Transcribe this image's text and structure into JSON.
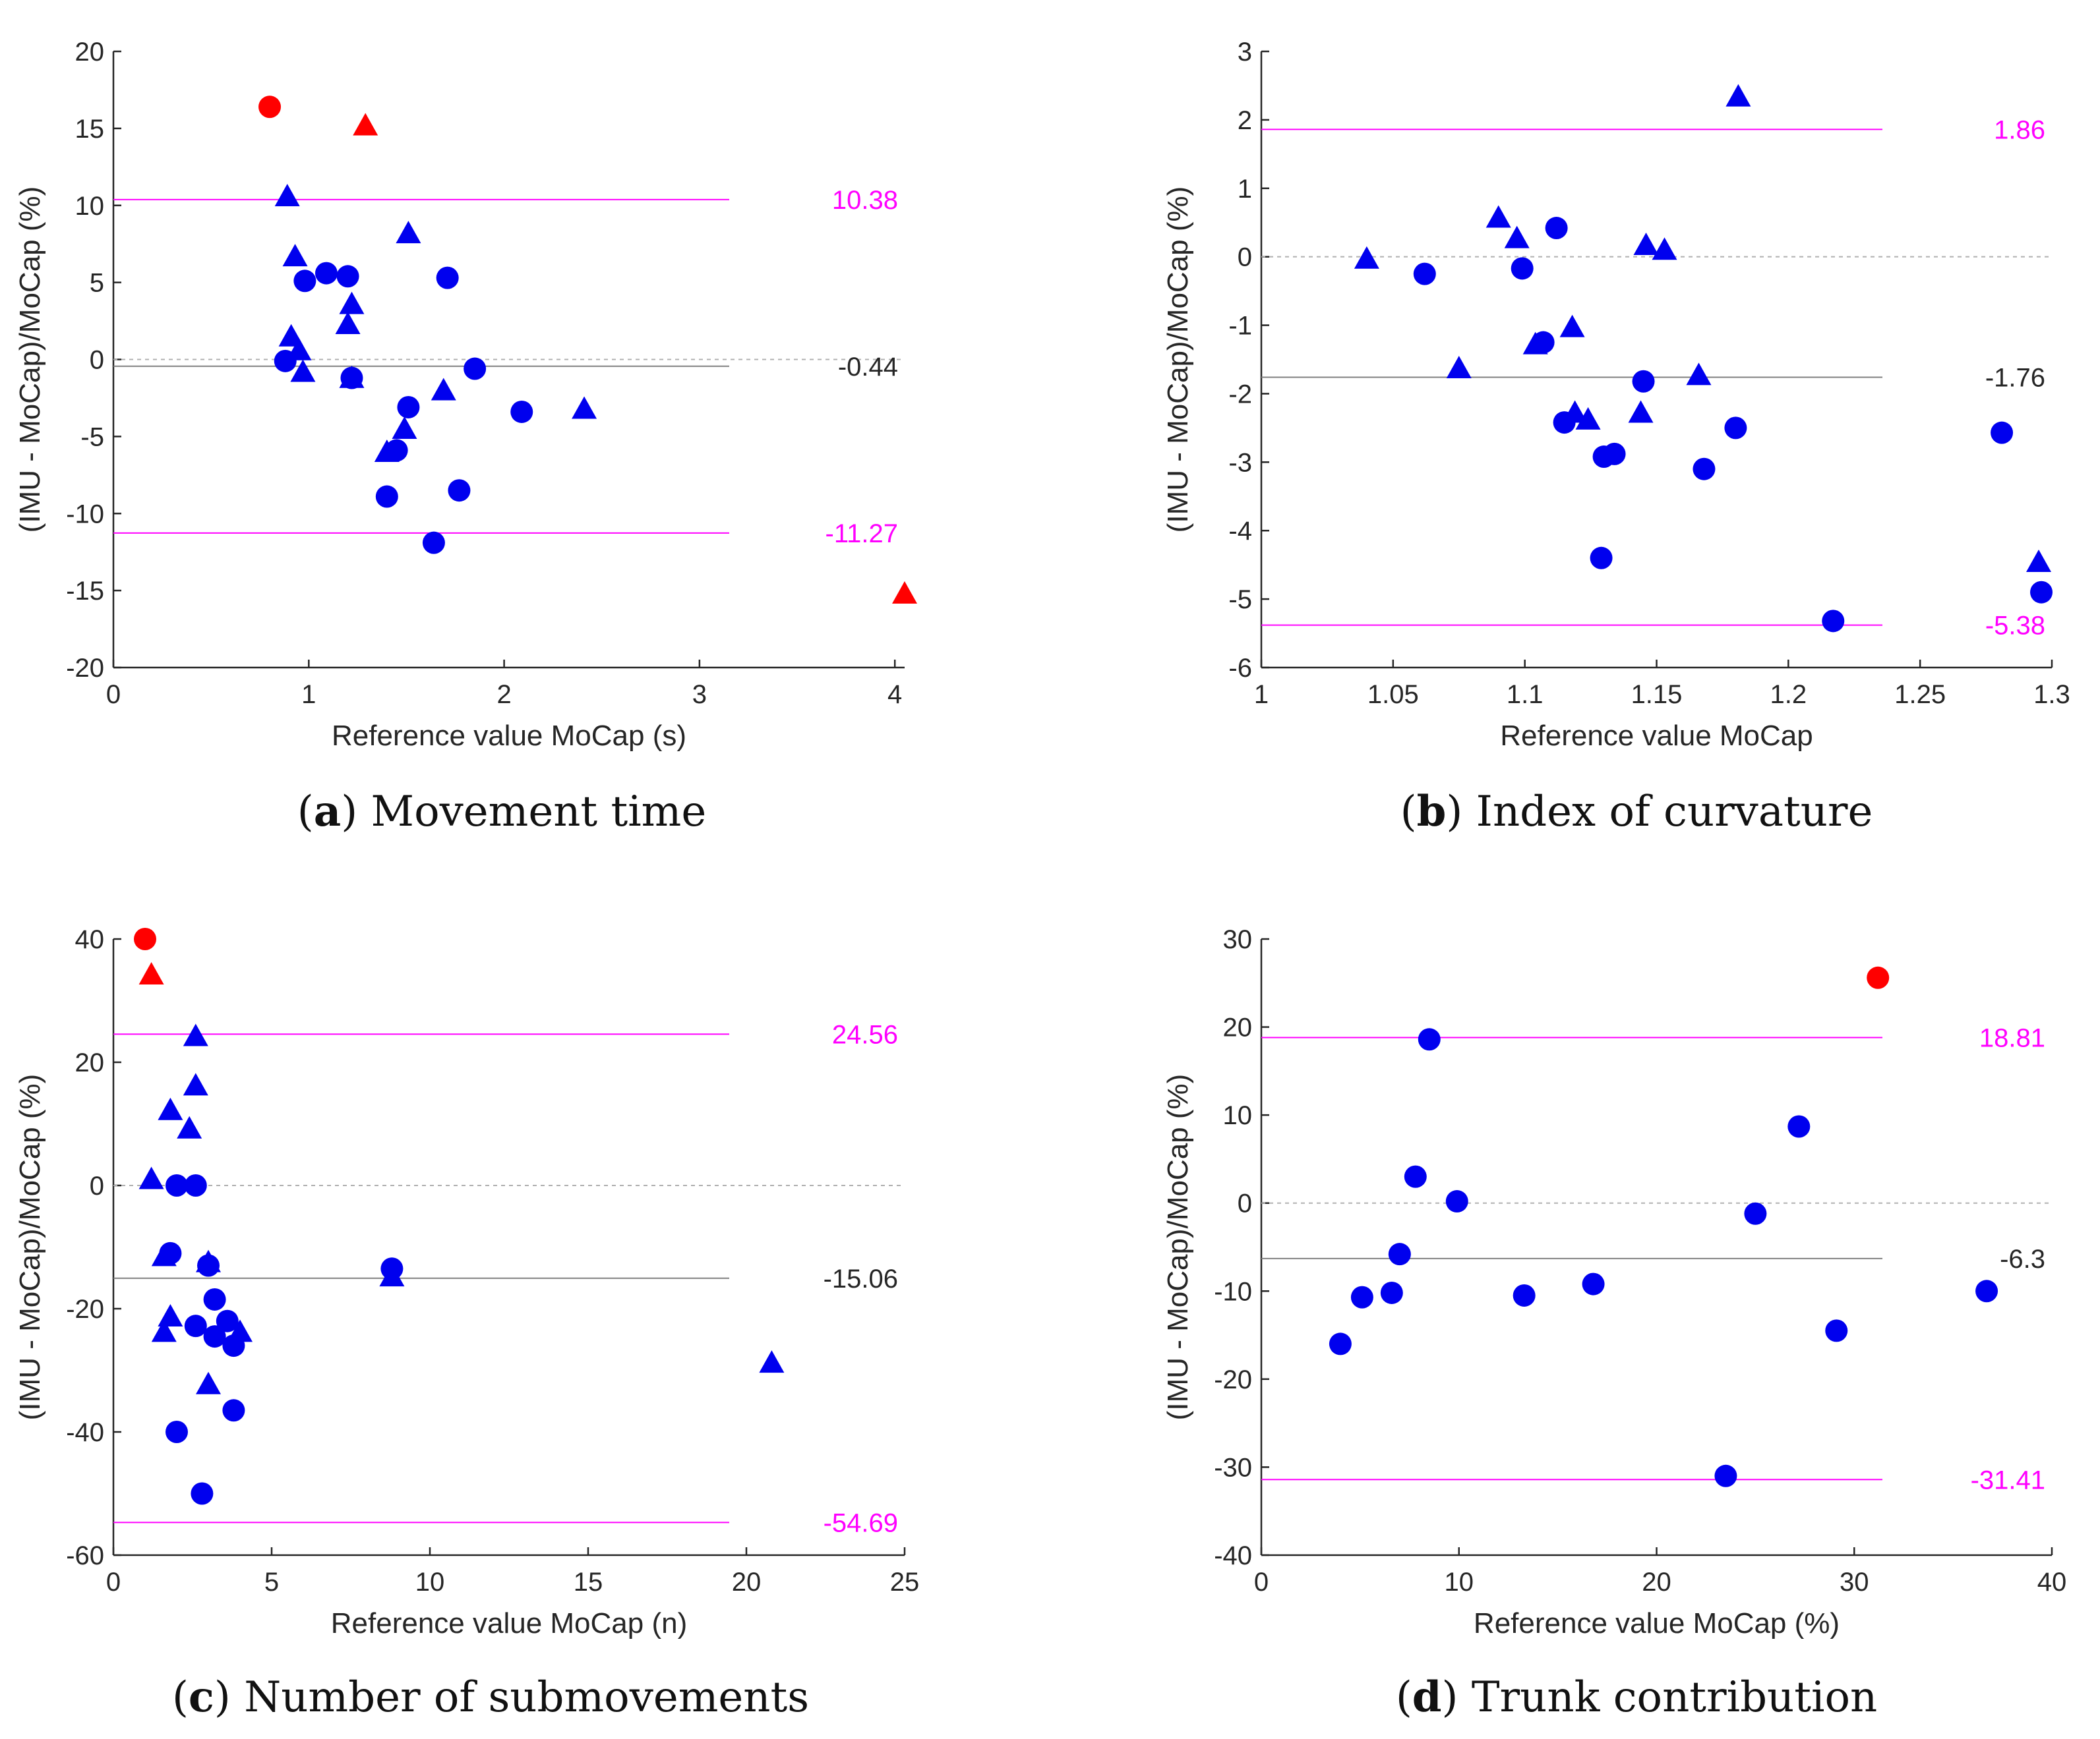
{
  "figure": {
    "panels": [
      {
        "letter": "a",
        "name": "Movement time"
      },
      {
        "letter": "b",
        "name": "Index of curvature"
      },
      {
        "letter": "c",
        "name": "Number of submovements"
      },
      {
        "letter": "d",
        "name": "Trunk contribution"
      }
    ]
  },
  "colors": {
    "points": "#0000ee",
    "outliers": "#ff0000",
    "limits": "#ff00ff",
    "mean": "#808080",
    "zero": "#b0b0b0",
    "axis": "#262626",
    "limit_text": "#ff00ff",
    "mean_text": "#262626"
  },
  "chart_data": [
    {
      "type": "scatter",
      "panel": "a",
      "title": "Movement time",
      "xlabel": "Reference value MoCap (s)",
      "ylabel": "(IMU - MoCap)/MoCap (%)",
      "xlim": [
        0,
        4.05
      ],
      "ylim": [
        -20,
        20
      ],
      "xticks": [
        0,
        1,
        2,
        3,
        4
      ],
      "yticks": [
        -20,
        -15,
        -10,
        -5,
        0,
        5,
        10,
        15,
        20
      ],
      "mean": -0.44,
      "mean_label": "-0.44",
      "upper_loa": 10.38,
      "upper_label": "10.38",
      "lower_loa": -11.27,
      "lower_label": "-11.27",
      "series": [
        {
          "name": "circles",
          "marker": "circle",
          "color": "blue",
          "points": [
            [
              0.88,
              -0.1
            ],
            [
              0.98,
              5.1
            ],
            [
              1.09,
              5.6
            ],
            [
              1.2,
              5.4
            ],
            [
              1.22,
              -1.2
            ],
            [
              1.4,
              -8.9
            ],
            [
              1.45,
              -5.9
            ],
            [
              1.51,
              -3.1
            ],
            [
              1.64,
              -11.9
            ],
            [
              1.71,
              5.3
            ],
            [
              1.77,
              -8.5
            ],
            [
              1.85,
              -0.6
            ],
            [
              2.09,
              -3.4
            ]
          ]
        },
        {
          "name": "triangles",
          "marker": "triangle",
          "color": "blue",
          "points": [
            [
              0.89,
              10.5
            ],
            [
              0.91,
              1.4
            ],
            [
              0.93,
              6.6
            ],
            [
              0.95,
              0.5
            ],
            [
              0.97,
              -0.9
            ],
            [
              1.2,
              2.2
            ],
            [
              1.22,
              3.5
            ],
            [
              1.22,
              -1.3
            ],
            [
              1.4,
              -6.1
            ],
            [
              1.49,
              -4.6
            ],
            [
              1.51,
              8.1
            ],
            [
              1.69,
              -2.1
            ],
            [
              2.41,
              -3.3
            ]
          ]
        },
        {
          "name": "outlier circle",
          "marker": "circle",
          "color": "red",
          "points": [
            [
              0.8,
              16.4
            ]
          ]
        },
        {
          "name": "outlier triangles",
          "marker": "triangle",
          "color": "red",
          "points": [
            [
              1.29,
              15.1
            ],
            [
              4.05,
              -15.3
            ]
          ]
        }
      ]
    },
    {
      "type": "scatter",
      "panel": "b",
      "title": "Index of curvature",
      "xlabel": "Reference value MoCap",
      "ylabel": "(IMU - MoCap)/MoCap (%)",
      "xlim": [
        1,
        1.3
      ],
      "ylim": [
        -6,
        3
      ],
      "xticks": [
        1,
        1.05,
        1.1,
        1.15,
        1.2,
        1.25,
        1.3
      ],
      "ytick_values": [
        -6,
        -5,
        -4,
        -3,
        -2,
        -1,
        0,
        1,
        2,
        3
      ],
      "mean": -1.76,
      "mean_label": "-1.76",
      "upper_loa": 1.86,
      "upper_label": "1.86",
      "lower_loa": -5.38,
      "lower_label": "-5.38",
      "series": [
        {
          "name": "circles",
          "marker": "circle",
          "color": "blue",
          "points": [
            [
              1.062,
              -0.25
            ],
            [
              1.099,
              -0.17
            ],
            [
              1.107,
              -1.25
            ],
            [
              1.112,
              0.42
            ],
            [
              1.115,
              -2.42
            ],
            [
              1.129,
              -4.4
            ],
            [
              1.13,
              -2.92
            ],
            [
              1.134,
              -2.88
            ],
            [
              1.145,
              -1.82
            ],
            [
              1.168,
              -3.1
            ],
            [
              1.18,
              -2.5
            ],
            [
              1.217,
              -5.32
            ],
            [
              1.281,
              -2.57
            ],
            [
              1.296,
              -4.9
            ]
          ]
        },
        {
          "name": "triangles",
          "marker": "triangle",
          "color": "blue",
          "points": [
            [
              1.04,
              -0.05
            ],
            [
              1.075,
              -1.65
            ],
            [
              1.09,
              0.55
            ],
            [
              1.097,
              0.25
            ],
            [
              1.104,
              -1.3
            ],
            [
              1.118,
              -1.05
            ],
            [
              1.119,
              -2.3
            ],
            [
              1.124,
              -2.4
            ],
            [
              1.144,
              -2.3
            ],
            [
              1.146,
              0.15
            ],
            [
              1.153,
              0.08
            ],
            [
              1.166,
              -1.75
            ],
            [
              1.181,
              2.32
            ],
            [
              1.295,
              -4.48
            ]
          ]
        }
      ]
    },
    {
      "type": "scatter",
      "panel": "c",
      "title": "Number of submovements",
      "xlabel": "Reference value MoCap (n)",
      "ylabel": "(IMU - MoCap)/MoCap (%)",
      "xlim": [
        0,
        25
      ],
      "ylim": [
        -60,
        40
      ],
      "xticks": [
        0,
        5,
        10,
        15,
        20,
        25
      ],
      "yticks": [
        -60,
        -40,
        -20,
        0,
        20,
        40
      ],
      "mean": -15.06,
      "mean_label": "-15.06",
      "upper_loa": 24.56,
      "upper_label": "24.56",
      "lower_loa": -54.69,
      "lower_label": "-54.69",
      "series": [
        {
          "name": "circles",
          "marker": "circle",
          "color": "blue",
          "points": [
            [
              1.8,
              -11
            ],
            [
              2.0,
              0
            ],
            [
              2.0,
              -40
            ],
            [
              2.6,
              0
            ],
            [
              2.6,
              -22.8
            ],
            [
              2.8,
              -50
            ],
            [
              3.0,
              -13
            ],
            [
              3.2,
              -18.5
            ],
            [
              3.2,
              -24.5
            ],
            [
              3.6,
              -22
            ],
            [
              3.8,
              -26
            ],
            [
              3.8,
              -36.5
            ],
            [
              8.8,
              -13.5
            ]
          ]
        },
        {
          "name": "triangles",
          "marker": "triangle",
          "color": "blue",
          "points": [
            [
              1.2,
              0.8
            ],
            [
              1.6,
              -11.7
            ],
            [
              1.6,
              -24
            ],
            [
              1.8,
              12
            ],
            [
              1.8,
              -21.5
            ],
            [
              2.4,
              9
            ],
            [
              2.6,
              24
            ],
            [
              2.6,
              16
            ],
            [
              3.0,
              -12.7
            ],
            [
              3.0,
              -32.5
            ],
            [
              4.0,
              -24
            ],
            [
              8.8,
              -15
            ],
            [
              20.8,
              -29
            ]
          ]
        },
        {
          "name": "outlier circle",
          "marker": "circle",
          "color": "red",
          "points": [
            [
              1.0,
              40
            ]
          ]
        },
        {
          "name": "outlier triangle",
          "marker": "triangle",
          "color": "red",
          "points": [
            [
              1.2,
              34
            ]
          ]
        }
      ]
    },
    {
      "type": "scatter",
      "panel": "d",
      "title": "Trunk contribution",
      "xlabel": "Reference value MoCap (%)",
      "ylabel": "(IMU - MoCap)/MoCap (%)",
      "xlim": [
        0,
        40
      ],
      "ylim": [
        -40,
        30
      ],
      "xticks": [
        0,
        10,
        20,
        30,
        40
      ],
      "yticks": [
        -40,
        -30,
        -20,
        -10,
        0,
        10,
        20,
        30
      ],
      "mean": -6.3,
      "mean_label": "-6.3",
      "upper_loa": 18.81,
      "upper_label": "18.81",
      "lower_loa": -31.41,
      "lower_label": "-31.41",
      "series": [
        {
          "name": "circles",
          "marker": "circle",
          "color": "blue",
          "points": [
            [
              4.0,
              -16
            ],
            [
              5.1,
              -10.7
            ],
            [
              6.6,
              -10.2
            ],
            [
              7.0,
              -5.8
            ],
            [
              7.8,
              3.0
            ],
            [
              8.5,
              18.6
            ],
            [
              9.9,
              0.2
            ],
            [
              13.3,
              -10.5
            ],
            [
              16.8,
              -9.2
            ],
            [
              23.5,
              -31
            ],
            [
              25.0,
              -1.2
            ],
            [
              27.2,
              8.7
            ],
            [
              29.1,
              -14.5
            ],
            [
              36.7,
              -10
            ]
          ]
        },
        {
          "name": "outlier circle",
          "marker": "circle",
          "color": "red",
          "points": [
            [
              31.2,
              25.6
            ]
          ]
        }
      ]
    }
  ]
}
